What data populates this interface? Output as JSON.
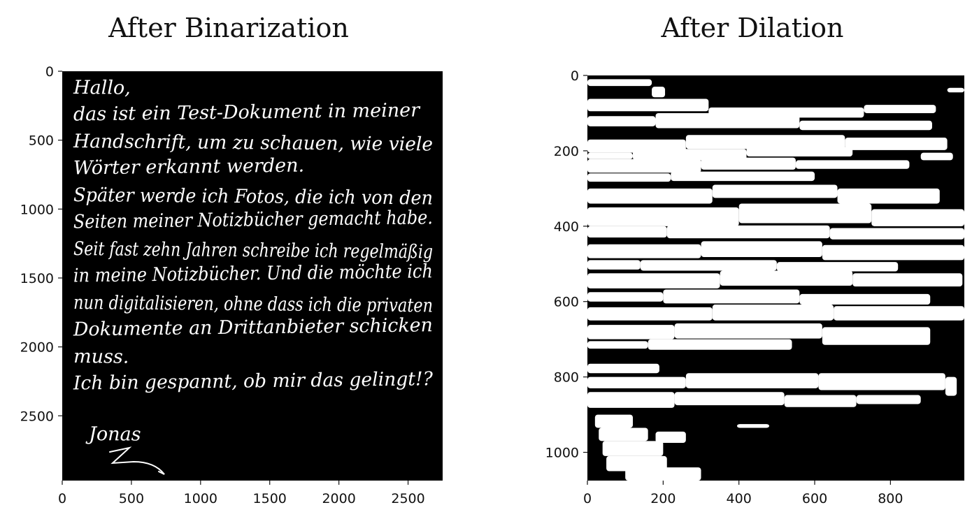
{
  "chart_data": [
    {
      "type": "heatmap",
      "title": "After Binarization",
      "xlim": [
        0,
        2750
      ],
      "ylim": [
        2970,
        0
      ],
      "x_ticks": [
        0,
        500,
        1000,
        1500,
        2000,
        2500
      ],
      "y_ticks": [
        0,
        500,
        1000,
        1500,
        2000,
        2500
      ],
      "background_color": "#000000",
      "ink_color": "#ffffff",
      "handwritten_text_lines": [
        "Hallo,",
        "das ist ein Test-Dokument in meiner",
        "Handschrift, um zu schauen, wie viele",
        "Wörter erkannt werden.",
        "Später werde ich Fotos, die ich von den",
        "Seiten meiner Notizbücher gemacht habe.",
        "Seit fast zehn Jahren schreibe ich regelmäßig",
        "in meine Notizbücher. Und die möchte ich",
        "nun digitalisieren, ohne dass ich die privaten",
        "Dokumente an Drittanbieter schicken",
        "muss.",
        "Ich bin gespannt, ob mir das gelingt!?",
        "Jonas"
      ]
    },
    {
      "type": "heatmap",
      "title": "After Dilation",
      "xlim": [
        0,
        995
      ],
      "ylim": [
        1075,
        0
      ],
      "x_ticks": [
        0,
        200,
        400,
        600,
        800
      ],
      "y_ticks": [
        0,
        200,
        400,
        600,
        800,
        1000
      ],
      "background_color": "#000000",
      "blob_color": "#ffffff",
      "blobs": [
        [
          0,
          10,
          170,
          28
        ],
        [
          170,
          30,
          205,
          58
        ],
        [
          950,
          33,
          995,
          45
        ],
        [
          0,
          62,
          320,
          95
        ],
        [
          320,
          85,
          730,
          112
        ],
        [
          730,
          78,
          920,
          100
        ],
        [
          0,
          108,
          180,
          135
        ],
        [
          180,
          100,
          560,
          140
        ],
        [
          560,
          120,
          910,
          145
        ],
        [
          0,
          170,
          260,
          205
        ],
        [
          260,
          158,
          680,
          195
        ],
        [
          680,
          165,
          950,
          198
        ],
        [
          0,
          205,
          120,
          222
        ],
        [
          120,
          195,
          420,
          225
        ],
        [
          420,
          190,
          700,
          215
        ],
        [
          0,
          222,
          300,
          258
        ],
        [
          300,
          218,
          550,
          250
        ],
        [
          550,
          225,
          850,
          248
        ],
        [
          880,
          205,
          965,
          225
        ],
        [
          0,
          260,
          220,
          282
        ],
        [
          220,
          255,
          600,
          280
        ],
        [
          0,
          300,
          330,
          340
        ],
        [
          330,
          290,
          660,
          325
        ],
        [
          660,
          300,
          930,
          340
        ],
        [
          0,
          350,
          400,
          400
        ],
        [
          400,
          340,
          750,
          392
        ],
        [
          750,
          355,
          995,
          400
        ],
        [
          0,
          400,
          210,
          430
        ],
        [
          210,
          398,
          640,
          432
        ],
        [
          640,
          405,
          995,
          435
        ],
        [
          0,
          448,
          300,
          485
        ],
        [
          300,
          440,
          620,
          482
        ],
        [
          620,
          450,
          995,
          490
        ],
        [
          0,
          490,
          140,
          515
        ],
        [
          140,
          490,
          500,
          518
        ],
        [
          500,
          495,
          820,
          520
        ],
        [
          0,
          525,
          350,
          565
        ],
        [
          350,
          518,
          700,
          558
        ],
        [
          700,
          525,
          990,
          560
        ],
        [
          0,
          575,
          200,
          600
        ],
        [
          200,
          568,
          560,
          605
        ],
        [
          560,
          580,
          905,
          608
        ],
        [
          0,
          615,
          330,
          650
        ],
        [
          330,
          608,
          650,
          650
        ],
        [
          650,
          612,
          995,
          650
        ],
        [
          0,
          662,
          230,
          700
        ],
        [
          230,
          658,
          620,
          698
        ],
        [
          620,
          668,
          905,
          715
        ],
        [
          0,
          705,
          160,
          725
        ],
        [
          160,
          700,
          540,
          728
        ],
        [
          0,
          765,
          190,
          790
        ],
        [
          0,
          800,
          260,
          830
        ],
        [
          260,
          790,
          610,
          830
        ],
        [
          610,
          790,
          945,
          835
        ],
        [
          945,
          800,
          975,
          850
        ],
        [
          0,
          840,
          230,
          882
        ],
        [
          230,
          840,
          520,
          875
        ],
        [
          520,
          848,
          710,
          880
        ],
        [
          710,
          848,
          880,
          872
        ],
        [
          20,
          900,
          120,
          935
        ],
        [
          30,
          935,
          160,
          970
        ],
        [
          40,
          970,
          200,
          1010
        ],
        [
          50,
          1010,
          210,
          1050
        ],
        [
          100,
          1040,
          300,
          1075
        ],
        [
          180,
          945,
          260,
          975
        ],
        [
          395,
          925,
          480,
          935
        ]
      ]
    }
  ]
}
